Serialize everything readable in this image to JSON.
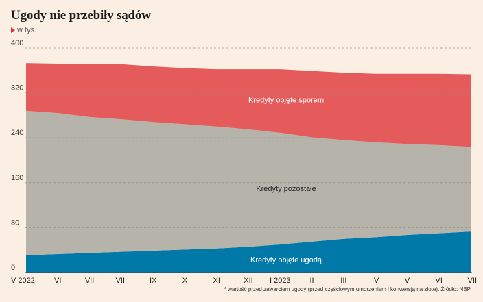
{
  "title": "Ugody nie przebiły sądów",
  "subtitle": "w tys.",
  "footnote": "* wartość przed zawarciem ugody (przed częściowym umorzeniem i konwersją na złote). Źródło: NBP",
  "colors": {
    "background": "#fbefe3",
    "ugoda": "#0079a8",
    "pozostale": "#b6b4aa",
    "spor": "#e55b5b",
    "grid": "#8f8a84"
  },
  "chart_data": {
    "type": "area",
    "stacked": true,
    "x": [
      "V 2022",
      "VI",
      "VII",
      "VIII",
      "IX",
      "X",
      "XI",
      "XII",
      "I 2023",
      "II",
      "III",
      "IV",
      "V",
      "VI",
      "VII"
    ],
    "series": [
      {
        "name": "Kredyty objęte ugodą",
        "color": "#0079a8",
        "values": [
          31,
          33,
          35,
          37,
          39,
          41,
          43,
          46,
          50,
          55,
          60,
          63,
          67,
          70,
          73
        ]
      },
      {
        "name": "Kredyty pozostałe",
        "color": "#b6b4aa",
        "values": [
          257,
          251,
          242,
          236,
          229,
          223,
          217,
          209,
          199,
          186,
          176,
          169,
          162,
          157,
          151
        ]
      },
      {
        "name": "Kredyty objęte sporem",
        "color": "#e55b5b",
        "values": [
          85,
          88,
          95,
          98,
          99,
          100,
          102,
          107,
          113,
          118,
          120,
          122,
          125,
          127,
          129
        ]
      }
    ],
    "yticks": [
      0,
      80,
      160,
      240,
      320,
      400
    ],
    "ylim": [
      0,
      400
    ],
    "xlabel": "",
    "ylabel": "",
    "grid": true
  }
}
